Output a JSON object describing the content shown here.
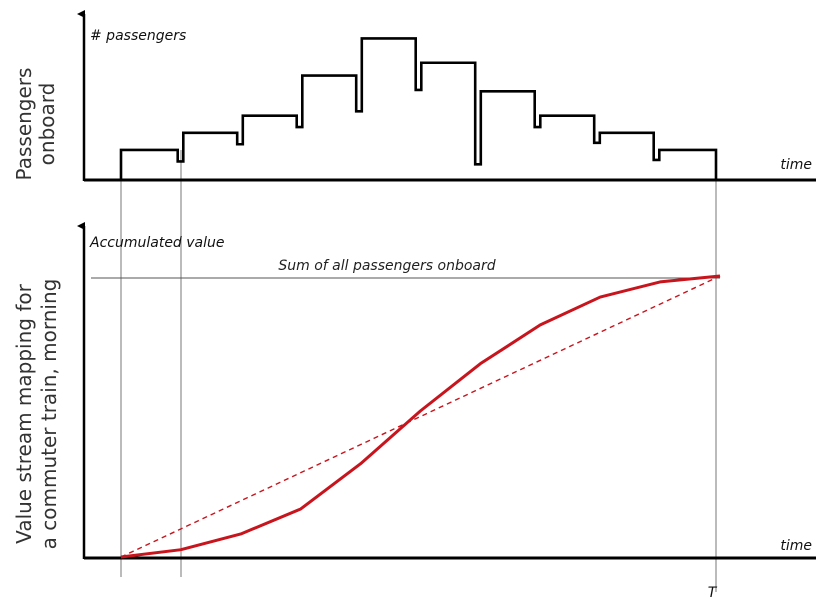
{
  "colors": {
    "axis": "#000000",
    "step": "#000000",
    "accumulated": "#c8141c",
    "guide": "#555555"
  },
  "chart_data": [
    {
      "type": "line",
      "ylabel_side": "Passengers onboard",
      "ylabel_axis": "# passengers",
      "xlabel": "time",
      "grid": false,
      "ylim": [
        0,
        10
      ],
      "segments": [
        {
          "x0": 0,
          "x1": 1,
          "value": 2.1
        },
        {
          "x0": 1,
          "x1": 2,
          "value": 3.3
        },
        {
          "x0": 2,
          "x1": 3,
          "value": 4.5
        },
        {
          "x0": 3,
          "x1": 4,
          "value": 7.3
        },
        {
          "x0": 4,
          "x1": 5,
          "value": 9.9
        },
        {
          "x0": 5,
          "x1": 6,
          "value": 8.2
        },
        {
          "x0": 6,
          "x1": 7,
          "value": 6.2
        },
        {
          "x0": 7,
          "x1": 8,
          "value": 4.5
        },
        {
          "x0": 8,
          "x1": 9,
          "value": 3.3
        },
        {
          "x0": 9,
          "x1": 10,
          "value": 2.1
        }
      ],
      "dips": [
        {
          "x": 1,
          "value": 1.3
        },
        {
          "x": 2,
          "value": 2.5
        },
        {
          "x": 3,
          "value": 3.7
        },
        {
          "x": 4,
          "value": 4.8
        },
        {
          "x": 5,
          "value": 6.3
        },
        {
          "x": 6,
          "value": 1.1
        },
        {
          "x": 7,
          "value": 3.7
        },
        {
          "x": 8,
          "value": 2.6
        },
        {
          "x": 9,
          "value": 1.4
        }
      ]
    },
    {
      "type": "line",
      "ylabel_side": "Value stream mapping for a commuter train, morning",
      "ylabel_axis": "Accumulated value",
      "xlabel": "time",
      "x_marker": "T",
      "reference_label": "Sum of all passengers onboard",
      "grid": false,
      "ylim": [
        0,
        1.0
      ],
      "series": [
        {
          "values": [
            [
              0,
              0.0
            ],
            [
              1,
              0.026
            ],
            [
              2,
              0.082
            ],
            [
              3,
              0.171
            ],
            [
              4,
              0.332
            ],
            [
              5,
              0.52
            ],
            [
              6,
              0.688
            ],
            [
              7,
              0.826
            ],
            [
              8,
              0.925
            ],
            [
              9,
              0.979
            ],
            [
              10,
              1.0
            ]
          ],
          "style": "solid"
        },
        {
          "values": [
            [
              0,
              0.0
            ],
            [
              10,
              1.0
            ]
          ],
          "style": "dashed"
        }
      ]
    }
  ]
}
